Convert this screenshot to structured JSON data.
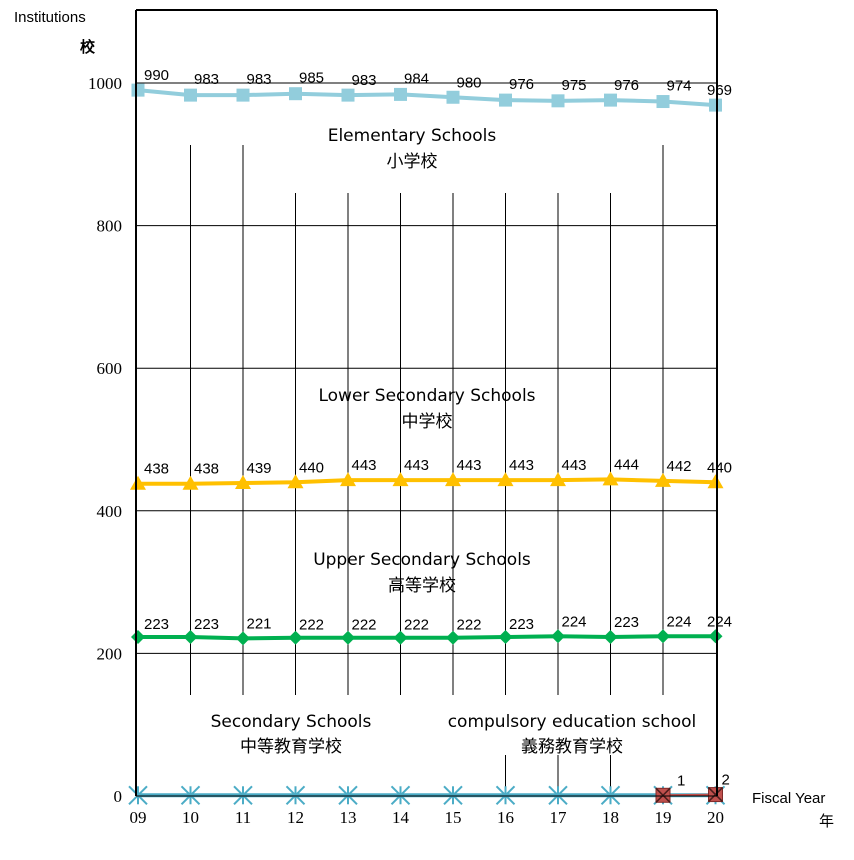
{
  "chart_data": {
    "type": "line",
    "x": [
      "09",
      "10",
      "11",
      "12",
      "13",
      "14",
      "15",
      "16",
      "17",
      "18",
      "19",
      "20"
    ],
    "ylim": [
      0,
      1000
    ],
    "yticks": [
      0,
      200,
      400,
      600,
      800,
      1000
    ],
    "ylabel": [
      "Institutions",
      "校"
    ],
    "xlabel": [
      "Fiscal Year",
      "年"
    ],
    "grid": true,
    "series": [
      {
        "name": [
          "Elementary Schools",
          "小学校"
        ],
        "values": [
          990,
          983,
          983,
          985,
          983,
          984,
          980,
          976,
          975,
          976,
          974,
          969
        ],
        "labels": [
          "990",
          "983",
          "983",
          "985",
          "983",
          "984",
          "980",
          "976",
          "975",
          "976",
          "974",
          "969"
        ],
        "color": "#92CDDC",
        "marker": "square"
      },
      {
        "name": [
          "Lower Secondary Schools",
          "中学校"
        ],
        "values": [
          438,
          438,
          439,
          440,
          443,
          443,
          443,
          443,
          443,
          444,
          442,
          440
        ],
        "labels": [
          "438",
          "438",
          "439",
          "440",
          "443",
          "443",
          "443",
          "443",
          "443",
          "444",
          "442",
          "440"
        ],
        "color": "#FFC000",
        "marker": "triangle"
      },
      {
        "name": [
          "Upper Secondary Schools",
          "高等学校"
        ],
        "values": [
          223,
          223,
          221,
          222,
          222,
          222,
          222,
          223,
          224,
          223,
          224,
          224
        ],
        "labels": [
          "223",
          "223",
          "221",
          "222",
          "222",
          "222",
          "222",
          "223",
          "224",
          "223",
          "224",
          "224"
        ],
        "color": "#00B050",
        "marker": "diamond"
      },
      {
        "name": [
          "Secondary Schools",
          "中等教育学校"
        ],
        "values": [
          1,
          1,
          1,
          1,
          1,
          1,
          1,
          1,
          1,
          1,
          1,
          1
        ],
        "labels": [],
        "color": "#4BACC6",
        "marker": "asterisk"
      },
      {
        "name": [
          "compulsory education school",
          "義務教育学校"
        ],
        "x": [
          "19",
          "20"
        ],
        "values": [
          1,
          2
        ],
        "labels": [
          "1",
          "2"
        ],
        "color": "#C0504D",
        "marker": "x-square"
      }
    ]
  }
}
